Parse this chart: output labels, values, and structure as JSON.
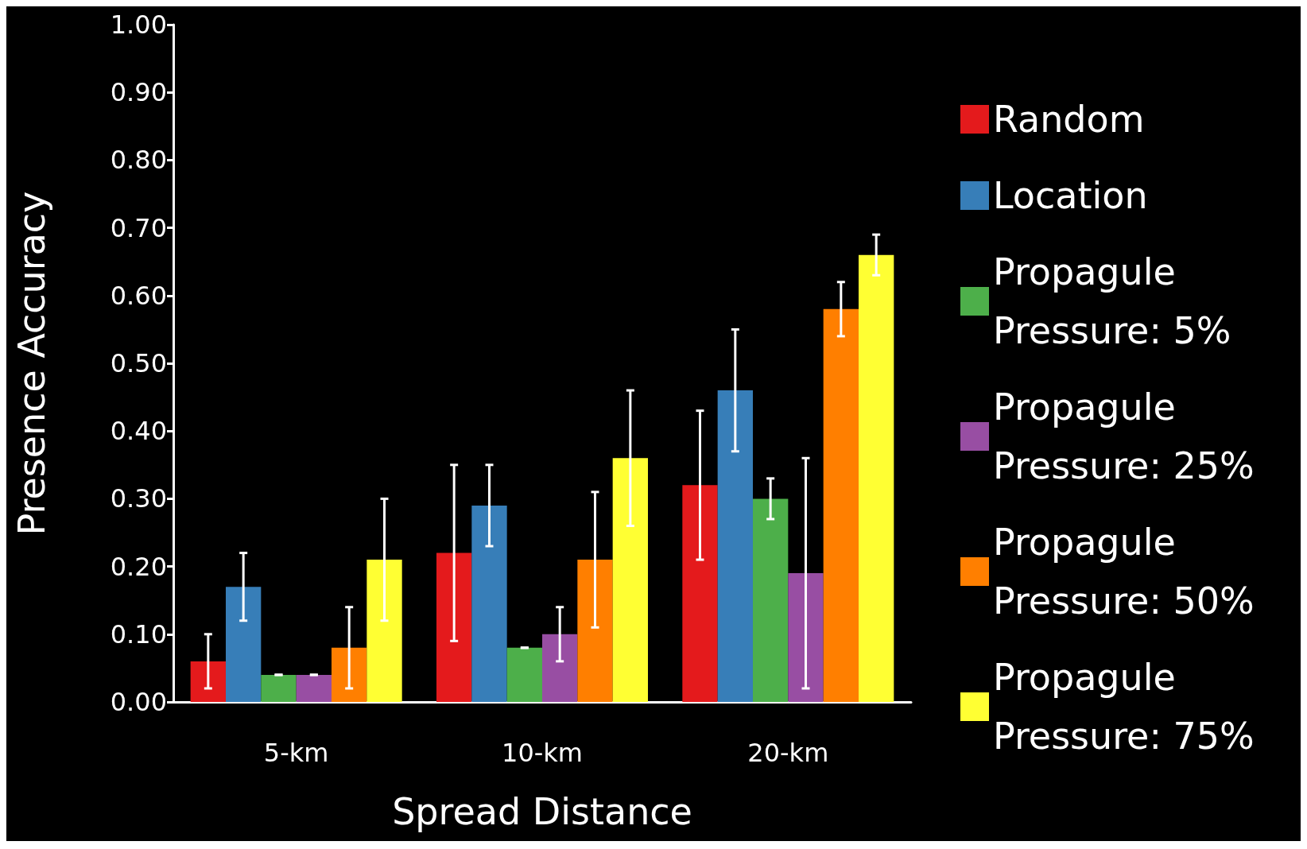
{
  "chart_data": {
    "type": "bar",
    "xlabel": "Spread Distance",
    "ylabel": "Presence Accuracy",
    "categories": [
      "5-km",
      "10-km",
      "20-km"
    ],
    "series": [
      {
        "name": "Random",
        "color": "#e41a1c",
        "values": [
          0.06,
          0.22,
          0.32
        ],
        "errors": [
          0.04,
          0.13,
          0.11
        ]
      },
      {
        "name": "Location",
        "color": "#377eb8",
        "values": [
          0.17,
          0.29,
          0.46
        ],
        "errors": [
          0.05,
          0.06,
          0.09
        ]
      },
      {
        "name": "Propagule Pressure: 5%",
        "color": "#4daf4a",
        "values": [
          0.04,
          0.08,
          0.3
        ],
        "errors": [
          0,
          0,
          0.03
        ]
      },
      {
        "name": "Propagule Pressure: 25%",
        "color": "#984ea3",
        "values": [
          0.04,
          0.1,
          0.19
        ],
        "errors": [
          0,
          0.04,
          0.17
        ]
      },
      {
        "name": "Propagule Pressure: 50%",
        "color": "#ff7f00",
        "values": [
          0.08,
          0.21,
          0.58
        ],
        "errors": [
          0.06,
          0.1,
          0.04
        ]
      },
      {
        "name": "Propagule Pressure: 75%",
        "color": "#ffff33",
        "values": [
          0.21,
          0.36,
          0.66
        ],
        "errors": [
          0.09,
          0.1,
          0.03
        ]
      }
    ],
    "ylim": [
      0,
      1
    ],
    "yticks": [
      {
        "value": 0,
        "label": "0.00"
      },
      {
        "value": 0.1,
        "label": "0.10"
      },
      {
        "value": 0.2,
        "label": "0.20"
      },
      {
        "value": 0.3,
        "label": "0.30"
      },
      {
        "value": 0.4,
        "label": "0.40"
      },
      {
        "value": 0.5,
        "label": "0.50"
      },
      {
        "value": 0.6,
        "label": "0.60"
      },
      {
        "value": 0.7,
        "label": "0.70"
      },
      {
        "value": 0.8,
        "label": "0.80"
      },
      {
        "value": 0.9,
        "label": "0.90"
      },
      {
        "value": 1,
        "label": "1.00"
      }
    ],
    "grid": false,
    "legend": "right"
  }
}
